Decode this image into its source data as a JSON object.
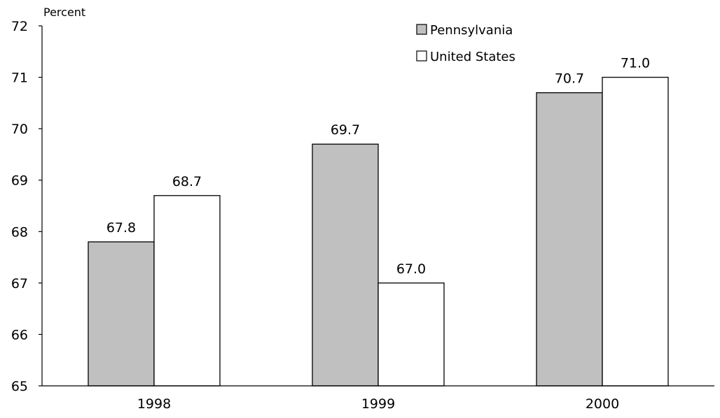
{
  "chart_data": {
    "type": "bar",
    "title": "",
    "xlabel": "",
    "ylabel": "Percent",
    "categories": [
      "1998",
      "1999",
      "2000"
    ],
    "series": [
      {
        "name": "Pennsylvania",
        "values": [
          67.8,
          69.7,
          70.7
        ],
        "labels": [
          "67.8",
          "69.7",
          "70.7"
        ],
        "color": "#c0c0c0"
      },
      {
        "name": "United States",
        "values": [
          68.7,
          67.0,
          71.0
        ],
        "labels": [
          "68.7",
          "67.0",
          "71.0"
        ],
        "color": "#ffffff"
      }
    ],
    "ylim": [
      65,
      72
    ],
    "yticks": [
      "65",
      "66",
      "67",
      "68",
      "69",
      "70",
      "71",
      "72"
    ],
    "grid": false,
    "legend_position": "top-right"
  }
}
